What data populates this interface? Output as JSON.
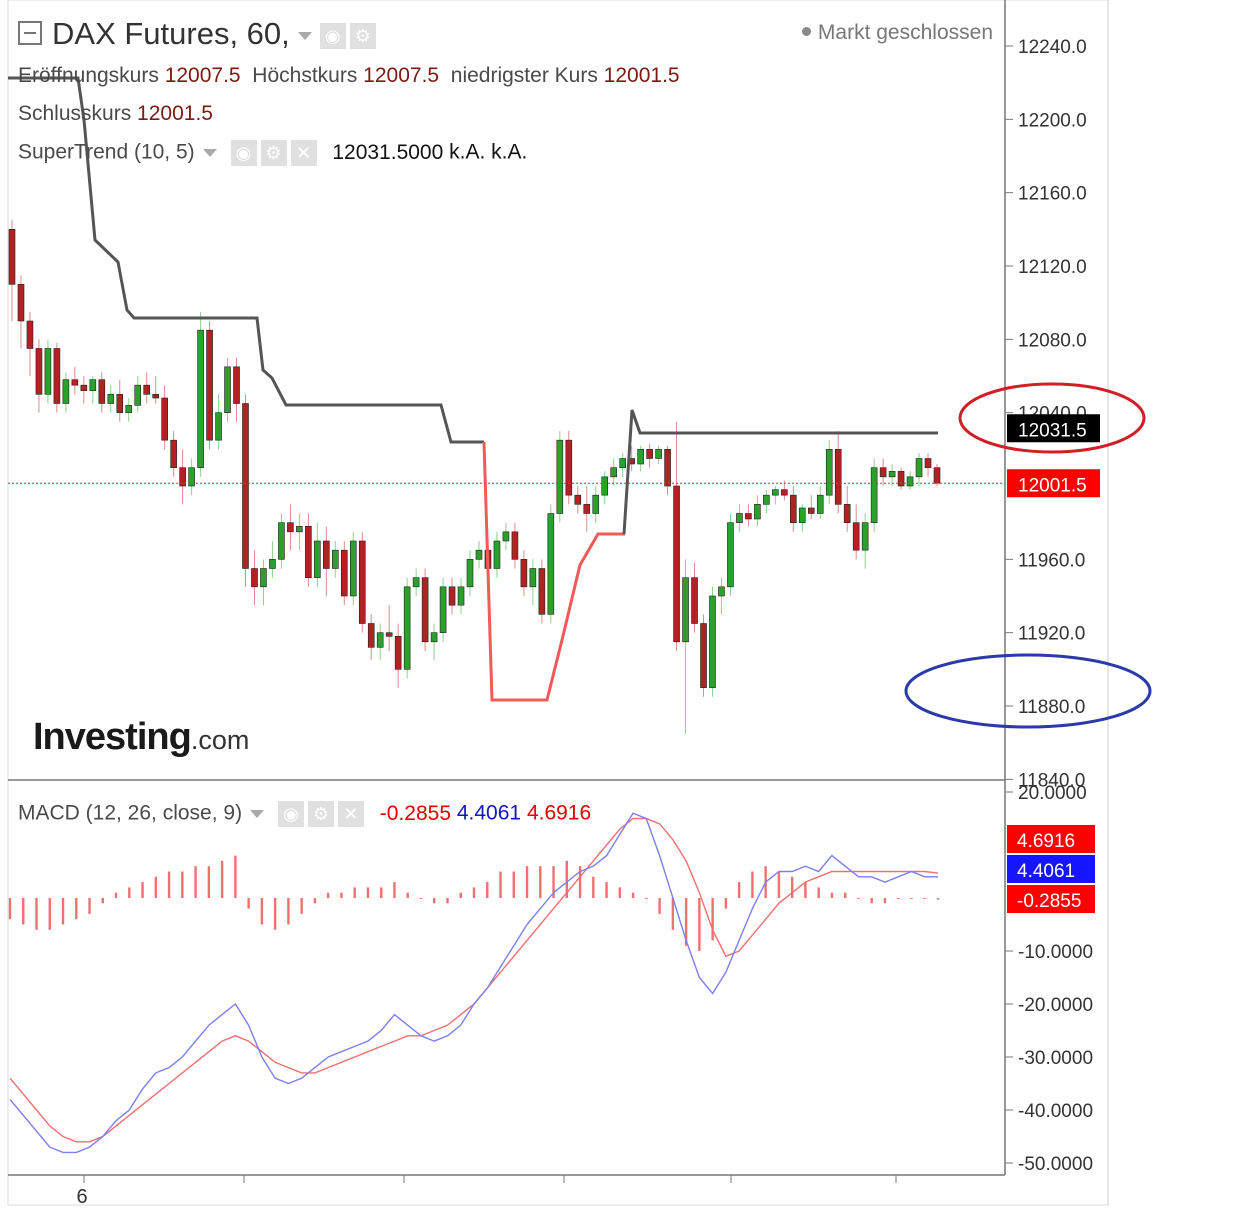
{
  "header": {
    "title": "DAX Futures, 60,",
    "status": "Markt geschlossen",
    "ohlc": [
      {
        "label": "Eröffnungskurs",
        "value": "12007.5"
      },
      {
        "label": "Höchstkurs",
        "value": "12007.5"
      },
      {
        "label": "niedrigster Kurs",
        "value": "12001.5"
      },
      {
        "label": "Schlusskurs",
        "value": "12001.5"
      }
    ],
    "supertrend": {
      "label": "SuperTrend (10, 5)",
      "value": "12031.5000",
      "v2": "k.A.",
      "v3": "k.A."
    },
    "macd": {
      "label": "MACD (12, 26, close, 9)",
      "hist": "-0.2855",
      "macd": "4.4061",
      "signal": "4.6916"
    }
  },
  "logo": {
    "brand": "Investing",
    "suffix": ".com"
  },
  "colors": {
    "up": "#2ca02c",
    "down": "#b22222",
    "supertrend_down": "#555555",
    "supertrend_up": "#f25a5a",
    "macd_line": "#7b7ff0",
    "signal_line": "#f07070",
    "hist": "#f07070",
    "badge_red": "#ff0000",
    "badge_blue": "#1515ff",
    "badge_black": "#000000"
  },
  "chart_data": [
    {
      "type": "candlestick",
      "title": "DAX Futures, 60,",
      "ylim": [
        11835,
        12255
      ],
      "yticks": [
        "12240.0",
        "12200.0",
        "12160.0",
        "12120.0",
        "12080.0",
        "12040.0",
        "11960.0",
        "11920.0",
        "11880.0",
        "11840.0"
      ],
      "xtick_labels": [
        "6"
      ],
      "last_price": "12001.5",
      "supertrend_value": "12031.5",
      "candles": [
        [
          12140,
          12145,
          12090,
          12110
        ],
        [
          12110,
          12115,
          12075,
          12090
        ],
        [
          12090,
          12095,
          12060,
          12075
        ],
        [
          12075,
          12080,
          12040,
          12050
        ],
        [
          12050,
          12080,
          12045,
          12075
        ],
        [
          12075,
          12078,
          12040,
          12045
        ],
        [
          12045,
          12062,
          12040,
          12058
        ],
        [
          12058,
          12065,
          12050,
          12055
        ],
        [
          12055,
          12060,
          12045,
          12052
        ],
        [
          12052,
          12060,
          12045,
          12058
        ],
        [
          12058,
          12062,
          12040,
          12045
        ],
        [
          12045,
          12055,
          12040,
          12050
        ],
        [
          12050,
          12058,
          12035,
          12040
        ],
        [
          12040,
          12048,
          12035,
          12044
        ],
        [
          12044,
          12060,
          12040,
          12055
        ],
        [
          12055,
          12062,
          12045,
          12050
        ],
        [
          12050,
          12060,
          12045,
          12048
        ],
        [
          12048,
          12055,
          12020,
          12025
        ],
        [
          12025,
          12030,
          12005,
          12010
        ],
        [
          12010,
          12020,
          11990,
          12000
        ],
        [
          12000,
          12015,
          11995,
          12010
        ],
        [
          12010,
          12095,
          12005,
          12085
        ],
        [
          12085,
          12090,
          12020,
          12025
        ],
        [
          12025,
          12050,
          12020,
          12040
        ],
        [
          12040,
          12070,
          12035,
          12065
        ],
        [
          12065,
          12070,
          12035,
          12045
        ],
        [
          12045,
          12050,
          11945,
          11955
        ],
        [
          11955,
          11965,
          11935,
          11945
        ],
        [
          11945,
          11960,
          11935,
          11955
        ],
        [
          11955,
          11970,
          11950,
          11960
        ],
        [
          11960,
          11985,
          11955,
          11980
        ],
        [
          11980,
          11990,
          11965,
          11975
        ],
        [
          11975,
          11985,
          11965,
          11978
        ],
        [
          11978,
          11985,
          11945,
          11950
        ],
        [
          11950,
          11980,
          11945,
          11970
        ],
        [
          11970,
          11978,
          11940,
          11955
        ],
        [
          11955,
          11970,
          11950,
          11965
        ],
        [
          11965,
          11970,
          11935,
          11940
        ],
        [
          11940,
          11975,
          11935,
          11970
        ],
        [
          11970,
          11975,
          11920,
          11925
        ],
        [
          11925,
          11930,
          11905,
          11912
        ],
        [
          11912,
          11925,
          11905,
          11920
        ],
        [
          11920,
          11935,
          11910,
          11918
        ],
        [
          11918,
          11925,
          11890,
          11900
        ],
        [
          11900,
          11950,
          11895,
          11945
        ],
        [
          11945,
          11955,
          11940,
          11950
        ],
        [
          11950,
          11955,
          11910,
          11915
        ],
        [
          11915,
          11925,
          11905,
          11920
        ],
        [
          11920,
          11950,
          11915,
          11945
        ],
        [
          11945,
          11950,
          11930,
          11935
        ],
        [
          11935,
          11950,
          11930,
          11945
        ],
        [
          11945,
          11965,
          11940,
          11960
        ],
        [
          11960,
          11970,
          11955,
          11965
        ],
        [
          11965,
          11972,
          11950,
          11955
        ],
        [
          11955,
          11975,
          11950,
          11970
        ],
        [
          11970,
          11980,
          11965,
          11975
        ],
        [
          11975,
          11980,
          11955,
          11960
        ],
        [
          11960,
          11965,
          11940,
          11945
        ],
        [
          11945,
          11960,
          11935,
          11955
        ],
        [
          11955,
          11960,
          11925,
          11930
        ],
        [
          11930,
          11990,
          11925,
          11985
        ],
        [
          11985,
          12030,
          11980,
          12025
        ],
        [
          12025,
          12030,
          11990,
          11995
        ],
        [
          11995,
          12000,
          11985,
          11990
        ],
        [
          11990,
          12000,
          11975,
          11985
        ],
        [
          11985,
          12000,
          11980,
          11995
        ],
        [
          11995,
          12008,
          11990,
          12005
        ],
        [
          12005,
          12015,
          12000,
          12010
        ],
        [
          12010,
          12018,
          12005,
          12015
        ],
        [
          12015,
          12022,
          12008,
          12012
        ],
        [
          12012,
          12022,
          12008,
          12020
        ],
        [
          12020,
          12023,
          12010,
          12015
        ],
        [
          12015,
          12022,
          12012,
          12020
        ],
        [
          12020,
          12022,
          11995,
          12000
        ],
        [
          12000,
          12035,
          11910,
          11915
        ],
        [
          11915,
          11960,
          11865,
          11950
        ],
        [
          11950,
          11958,
          11920,
          11925
        ],
        [
          11925,
          11930,
          11885,
          11890
        ],
        [
          11890,
          11945,
          11885,
          11940
        ],
        [
          11940,
          11950,
          11930,
          11945
        ],
        [
          11945,
          11985,
          11940,
          11980
        ],
        [
          11980,
          11990,
          11975,
          11985
        ],
        [
          11985,
          11990,
          11978,
          11982
        ],
        [
          11982,
          11995,
          11978,
          11990
        ],
        [
          11990,
          11998,
          11985,
          11995
        ],
        [
          11995,
          12000,
          11990,
          11998
        ],
        [
          11998,
          12003,
          11992,
          11995
        ],
        [
          11995,
          12000,
          11975,
          11980
        ],
        [
          11980,
          11990,
          11975,
          11988
        ],
        [
          11988,
          11995,
          11982,
          11985
        ],
        [
          11985,
          12000,
          11982,
          11995
        ],
        [
          11995,
          12025,
          11990,
          12020
        ],
        [
          12020,
          12030,
          11985,
          11990
        ],
        [
          11990,
          12000,
          11975,
          11980
        ],
        [
          11980,
          11990,
          11960,
          11965
        ],
        [
          11965,
          11985,
          11955,
          11980
        ],
        [
          11980,
          12015,
          11975,
          12010
        ],
        [
          12010,
          12015,
          12000,
          12005
        ],
        [
          12005,
          12012,
          12000,
          12008
        ],
        [
          12008,
          12010,
          11998,
          12000
        ],
        [
          12000,
          12008,
          11998,
          12005
        ],
        [
          12005,
          12018,
          12000,
          12015
        ],
        [
          12015,
          12018,
          12005,
          12010
        ],
        [
          12010,
          12012,
          12000,
          12001.5
        ]
      ]
    },
    {
      "type": "line",
      "title": "MACD (12, 26, close, 9)",
      "ylim": [
        -52,
        21
      ],
      "yticks": [
        "20.0000",
        "-10.0000",
        "-20.0000",
        "-30.0000",
        "-40.0000",
        "-50.0000"
      ],
      "last_values": {
        "histogram": "-0.2855",
        "macd": "4.4061",
        "signal": "4.6916"
      },
      "series": [
        {
          "name": "MACD",
          "values": [
            -38,
            -41,
            -44,
            -47,
            -48,
            -48,
            -47,
            -45,
            -42,
            -40,
            -36,
            -33,
            -32,
            -30,
            -27,
            -24,
            -22,
            -20,
            -24,
            -30,
            -34,
            -35,
            -34,
            -32,
            -30,
            -29,
            -28,
            -27,
            -25,
            -22,
            -24,
            -26,
            -27,
            -26,
            -24,
            -20,
            -17,
            -13,
            -9,
            -5,
            -2,
            1,
            3,
            5,
            6,
            8,
            12,
            16,
            15,
            8,
            0,
            -8,
            -15,
            -18,
            -14,
            -8,
            -2,
            3,
            5,
            5,
            6,
            5,
            8,
            6,
            4,
            4,
            3,
            4,
            5,
            4,
            4
          ]
        },
        {
          "name": "Signal",
          "values": [
            -34,
            -37,
            -40,
            -43,
            -45,
            -46,
            -46,
            -45,
            -43,
            -41,
            -39,
            -37,
            -35,
            -33,
            -31,
            -29,
            -27,
            -26,
            -27,
            -29,
            -31,
            -32,
            -33,
            -33,
            -32,
            -31,
            -30,
            -29,
            -28,
            -27,
            -26,
            -26,
            -25,
            -24,
            -22,
            -20,
            -17,
            -14,
            -11,
            -8,
            -5,
            -2,
            1,
            4,
            7,
            10,
            13,
            15,
            15,
            14,
            11,
            7,
            1,
            -6,
            -11,
            -10,
            -7,
            -4,
            -1,
            1,
            3,
            4,
            5,
            5,
            5,
            5,
            5,
            5,
            5,
            5,
            4.7
          ]
        },
        {
          "name": "Histogram",
          "values": [
            -4,
            -5,
            -6,
            -6,
            -5,
            -4,
            -3,
            -1,
            1,
            2,
            3,
            4,
            5,
            5,
            6,
            6,
            7,
            8,
            -2,
            -5,
            -6,
            -5,
            -3,
            -1,
            1,
            1,
            2,
            2,
            2,
            3,
            1,
            0,
            -1,
            -1,
            1,
            2,
            3,
            5,
            5,
            6,
            6,
            6,
            7,
            6,
            4,
            3,
            2,
            1,
            0,
            -3,
            -6,
            -9,
            -10,
            -8,
            -2,
            3,
            5,
            6,
            5,
            4,
            3,
            2,
            1,
            1,
            0,
            -1,
            -1,
            0,
            0,
            0,
            -0.3
          ]
        }
      ]
    }
  ]
}
